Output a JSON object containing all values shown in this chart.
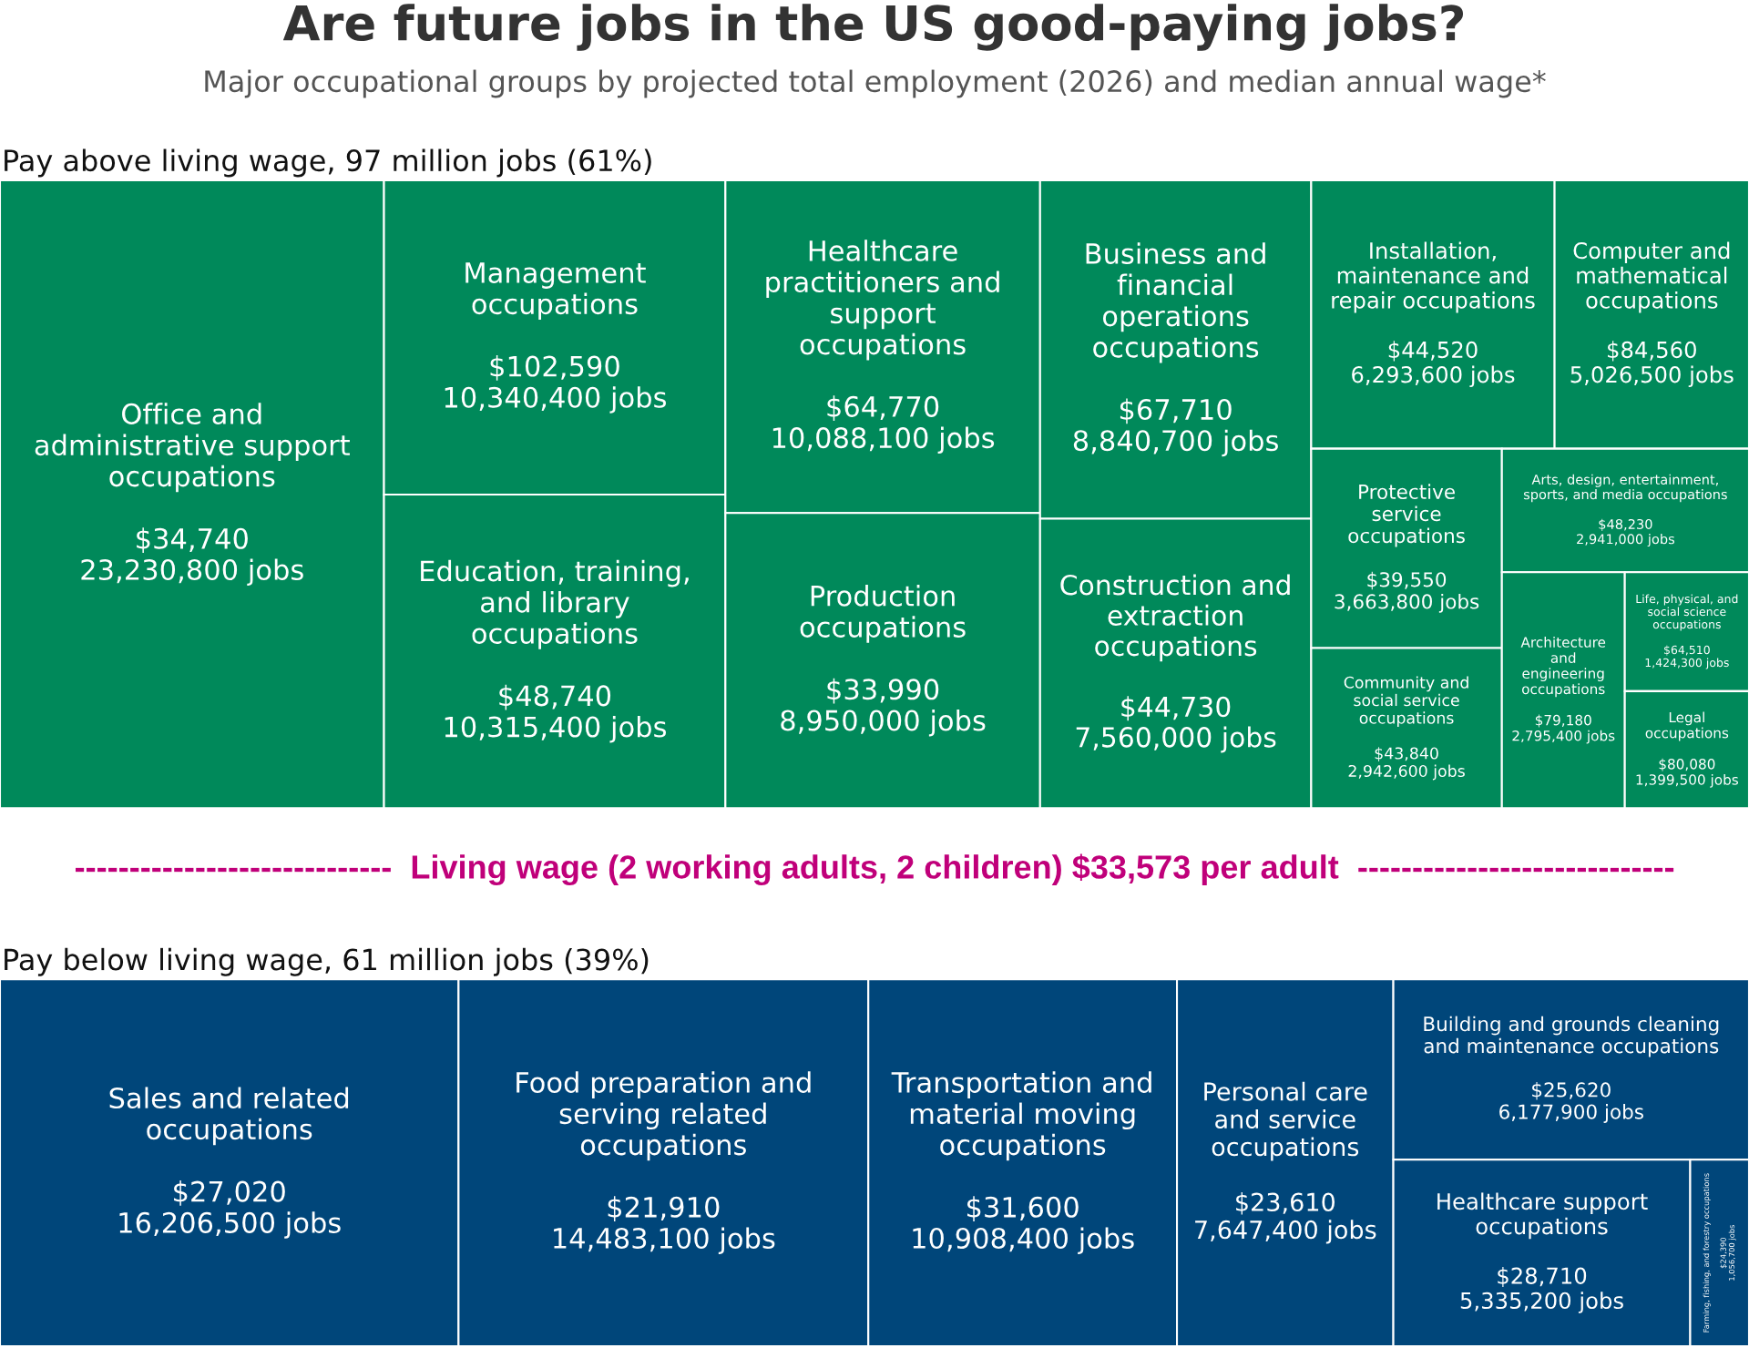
{
  "chart_data": [
    {
      "type": "other",
      "title": "Are future jobs in the US good-paying jobs?",
      "subtitle": "Major occupational groups by projected total employment (2026) and median annual wage*"
    },
    {
      "type": "other",
      "title": "Pay above living wage, 97 million jobs (61%)",
      "categories": [
        "Office and administrative support occupations",
        "Management occupations",
        "Education, training, and library occupations",
        "Healthcare practitioners and support occupations",
        "Production occupations",
        "Business and financial operations occupations",
        "Construction and extraction occupations",
        "Installation, maintenance and repair occupations",
        "Computer and mathematical occupations",
        "Protective service occupations",
        "Community and social service occupations",
        "Arts, design, entertainment, sports, and media occupations",
        "Architecture and engineering occupations",
        "Life, physical, and social science occupations",
        "Legal occupations"
      ],
      "colors": [
        "#00895a",
        "#00895a",
        "#00895a",
        "#00895a",
        "#00895a",
        "#00895a",
        "#00895a",
        "#00895a",
        "#00895a",
        "#00895a",
        "#00895a",
        "#00895a",
        "#00895a",
        "#00895a",
        "#00895a"
      ],
      "series": [
        {
          "values": [
            23230800,
            10340400,
            10315400,
            10088100,
            8950000,
            8840700,
            7560000,
            6293600,
            5026500,
            3663800,
            2942600,
            2941000,
            2795400,
            1424300,
            1399500
          ],
          "value_labels": [
            "23,230,800 jobs",
            "10,340,400 jobs",
            "10,315,400 jobs",
            "10,088,100 jobs",
            "8,950,000 jobs",
            "8,840,700 jobs",
            "7,560,000 jobs",
            "6,293,600 jobs",
            "5,026,500 jobs",
            "3,663,800 jobs",
            "2,942,600 jobs",
            "2,941,000 jobs",
            "2,795,400 jobs",
            "1,424,300 jobs",
            "1,399,500 jobs"
          ]
        },
        {
          "values": [
            34740,
            102590,
            48740,
            64770,
            33990,
            67710,
            44730,
            44520,
            84560,
            39550,
            43840,
            48230,
            79180,
            64510,
            80080
          ],
          "value_labels": [
            "$34,740",
            "$102,590",
            "$48,740",
            "$64,770",
            "$33,990",
            "$67,710",
            "$44,730",
            "$44,520",
            "$84,560",
            "$39,550",
            "$43,840",
            "$48,230",
            "$79,180",
            "$64,510",
            "$80,080"
          ]
        }
      ],
      "annotations": [
        "-----------------------------  Living wage (2 working adults, 2 children) $33,573 per adult  -----------------------------"
      ]
    },
    {
      "type": "other",
      "title": "Pay below living wage, 61 million jobs (39%)",
      "categories": [
        "Sales and related occupations",
        "Food preparation and serving related occupations",
        "Transportation and material moving occupations",
        "Personal care and service occupations",
        "Building and grounds cleaning and maintenance occupations",
        "Healthcare support occupations",
        "Farming, fishing, and forestry occupations"
      ],
      "colors": [
        "#00467a",
        "#00467a",
        "#00467a",
        "#00467a",
        "#00467a",
        "#00467a",
        "#00467a"
      ],
      "series": [
        {
          "values": [
            16206500,
            14483100,
            10908400,
            7647400,
            6177900,
            5335200,
            1056700
          ],
          "value_labels": [
            "16,206,500 jobs",
            "14,483,100 jobs",
            "10,908,400 jobs",
            "7,647,400 jobs",
            "6,177,900 jobs",
            "5,335,200 jobs",
            "1,056,700 jobs"
          ]
        },
        {
          "values": [
            27020,
            21910,
            31600,
            23610,
            25620,
            28710,
            24390
          ],
          "value_labels": [
            "$27,020",
            "$21,910",
            "$31,600",
            "$23,610",
            "$25,620",
            "$28,710",
            "$24,390"
          ]
        }
      ]
    }
  ]
}
